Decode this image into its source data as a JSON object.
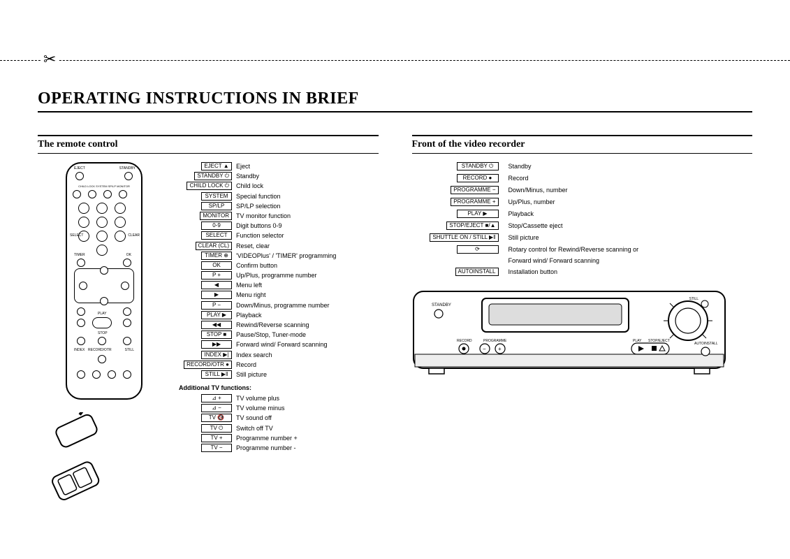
{
  "title": "OPERATING INSTRUCTIONS IN BRIEF",
  "left": {
    "heading": "The remote control",
    "legend": [
      {
        "btn": "EJECT ▲",
        "desc": "Eject"
      },
      {
        "btn": "STANDBY ⏻",
        "desc": "Standby"
      },
      {
        "btn": "CHILD LOCK ⏻",
        "desc": "Child lock"
      },
      {
        "btn": "SYSTEM",
        "desc": "Special function"
      },
      {
        "btn": "SP/LP",
        "desc": "SP/LP selection"
      },
      {
        "btn": "MONITOR",
        "desc": "TV monitor function"
      },
      {
        "btn": "0-9",
        "desc": "Digit buttons 0-9"
      },
      {
        "btn": "SELECT",
        "desc": "Function selector"
      },
      {
        "btn": "CLEAR (CL)",
        "desc": "Reset, clear"
      },
      {
        "btn": "TIMER ⊕",
        "desc": "'VIDEOPlus' / 'TIMER' programming"
      },
      {
        "btn": "OK",
        "desc": "Confirm button"
      },
      {
        "btn": "P +",
        "desc": "Up/Plus, programme number"
      },
      {
        "btn": "◀",
        "desc": "Menu left"
      },
      {
        "btn": "▶",
        "desc": "Menu right"
      },
      {
        "btn": "P −",
        "desc": "Down/Minus, programme number"
      },
      {
        "btn": "PLAY ▶",
        "desc": "Playback"
      },
      {
        "btn": "◀◀",
        "desc": "Rewind/Reverse scanning"
      },
      {
        "btn": "STOP ■",
        "desc": "Pause/Stop, Tuner-mode"
      },
      {
        "btn": "▶▶",
        "desc": "Forward wind/ Forward scanning"
      },
      {
        "btn": "INDEX ▶|",
        "desc": "Index search"
      },
      {
        "btn": "RECORD/OTR ●",
        "desc": "Record"
      },
      {
        "btn": "STILL ▶‖",
        "desc": "Still picture"
      }
    ],
    "tv_heading": "Additional TV functions:",
    "tv_legend": [
      {
        "btn": "⊿ +",
        "desc": "TV volume plus"
      },
      {
        "btn": "⊿ −",
        "desc": "TV volume minus"
      },
      {
        "btn": "TV 🔇",
        "desc": "TV sound off"
      },
      {
        "btn": "TV ⏻",
        "desc": "Switch off TV"
      },
      {
        "btn": "TV +",
        "desc": "Programme number +"
      },
      {
        "btn": "TV −",
        "desc": "Programme number -"
      }
    ],
    "remote_labels": {
      "eject": "EJECT",
      "standby": "STANDBY",
      "row2": "CHILD LOCK  SYSTEM  SP/LP  MONITOR",
      "select": "SELECT",
      "clear": "CLEAR",
      "timer": "TIMER",
      "ok": "OK",
      "play": "PLAY",
      "stop": "STOP",
      "index": "INDEX",
      "still": "STILL",
      "record": "RECORD/OTR"
    }
  },
  "right": {
    "heading": "Front of the video recorder",
    "legend": [
      {
        "btn": "STANDBY ⏻",
        "desc": "Standby"
      },
      {
        "btn": "RECORD ●",
        "desc": "Record"
      },
      {
        "btn": "PROGRAMME −",
        "desc": "Down/Minus, number"
      },
      {
        "btn": "PROGRAMME +",
        "desc": "Up/Plus, number"
      },
      {
        "btn": "PLAY ▶",
        "desc": "Playback"
      },
      {
        "btn": "STOP/EJECT ■/▲",
        "desc": "Stop/Cassette eject"
      },
      {
        "btn": "SHUTTLE ON / STILL ▶‖",
        "desc": "Still picture"
      },
      {
        "btn": "⟳",
        "desc": "Rotary control for Rewind/Reverse scanning or"
      },
      {
        "btn": "",
        "desc": "Forward wind/ Forward scanning"
      },
      {
        "btn": "AUTOINSTALL",
        "desc": "Installation button"
      }
    ],
    "vcr_labels": {
      "standby": "STANDBY",
      "record": "RECORD",
      "programme": "PROGRAMME",
      "play": "PLAY",
      "stopeject": "STOP/EJECT",
      "still": "STILL",
      "autoinstall": "AUTOINSTALL"
    }
  }
}
